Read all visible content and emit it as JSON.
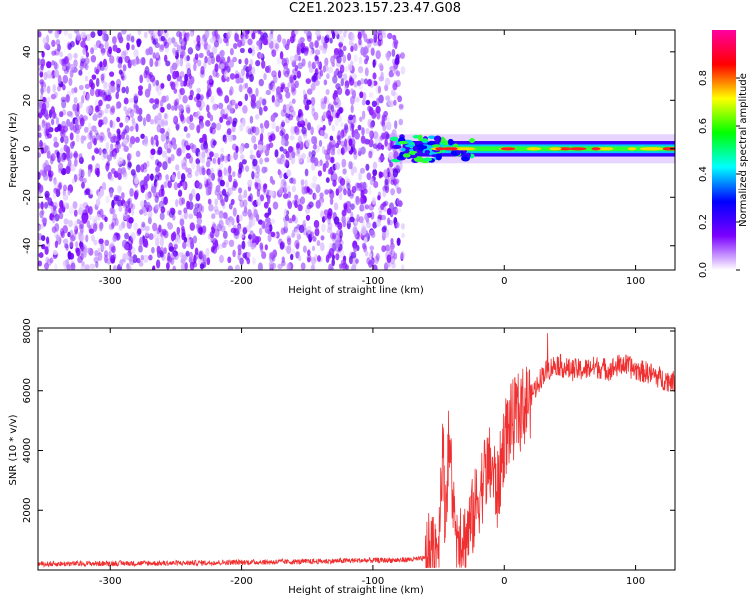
{
  "title": "C2E1.2023.157.23.47.G08",
  "chart_data": [
    {
      "type": "heatmap",
      "xlabel": "Height of straight line (km)",
      "ylabel": "Frequency (Hz)",
      "xlim": [
        -355,
        130
      ],
      "ylim": [
        -50,
        49
      ],
      "xticks": [
        -300,
        -200,
        -100,
        0,
        100
      ],
      "xtick_labels": [
        "-300",
        "-200",
        "-100",
        "0",
        "100"
      ],
      "yticks": [
        -40,
        -20,
        0,
        20,
        40
      ],
      "ytick_labels": [
        "-40",
        "-20",
        "0",
        "20",
        "40"
      ],
      "noise_region_x": [
        -355,
        -77
      ],
      "signal_band_x": [
        -85,
        130
      ],
      "signal_band_center_hz": 0,
      "signal_band_halfwidth_hz": 2,
      "colorbar": {
        "label": "Normalized spectral amplitude",
        "range": [
          0,
          1
        ],
        "ticks": [
          0.0,
          0.2,
          0.4,
          0.6,
          0.8
        ],
        "tick_labels": [
          "0.0",
          "0.2",
          "0.4",
          "0.6",
          "0.8"
        ],
        "colormap": [
          "#ffffff",
          "#7a00ff",
          "#0000ff",
          "#00ffff",
          "#00ff00",
          "#ffff00",
          "#ff0000",
          "#ff00a0"
        ]
      },
      "grid": false
    },
    {
      "type": "line",
      "xlabel": "Height of straight line (km)",
      "ylabel": "SNR (10 * v/v)",
      "xlim": [
        -355,
        130
      ],
      "ylim": [
        0,
        8100
      ],
      "xticks": [
        -300,
        -200,
        -100,
        0,
        100
      ],
      "xtick_labels": [
        "-300",
        "-200",
        "-100",
        "0",
        "100"
      ],
      "yticks": [
        2000,
        4000,
        6000,
        8000
      ],
      "ytick_labels": [
        "2000",
        "4000",
        "6000",
        "8000"
      ],
      "color": "#f03030",
      "series": [
        {
          "x": [
            -355,
            -300,
            -250,
            -200,
            -150,
            -110,
            -80,
            -60,
            -50,
            -47,
            -45,
            -42,
            -40,
            -37,
            -35,
            -30,
            -25,
            -20,
            -15,
            -10,
            -5,
            0,
            5,
            10,
            20,
            30,
            40,
            50,
            60,
            70,
            80,
            90,
            100,
            110,
            120,
            130
          ],
          "y": [
            200,
            220,
            230,
            260,
            280,
            320,
            330,
            380,
            900,
            4200,
            1800,
            4400,
            3000,
            900,
            1500,
            1000,
            1600,
            2400,
            3200,
            3500,
            2600,
            4400,
            4900,
            5200,
            5800,
            6600,
            6900,
            6700,
            6700,
            6800,
            6700,
            6900,
            6700,
            6600,
            6400,
            6300
          ]
        }
      ],
      "grid": false
    }
  ]
}
